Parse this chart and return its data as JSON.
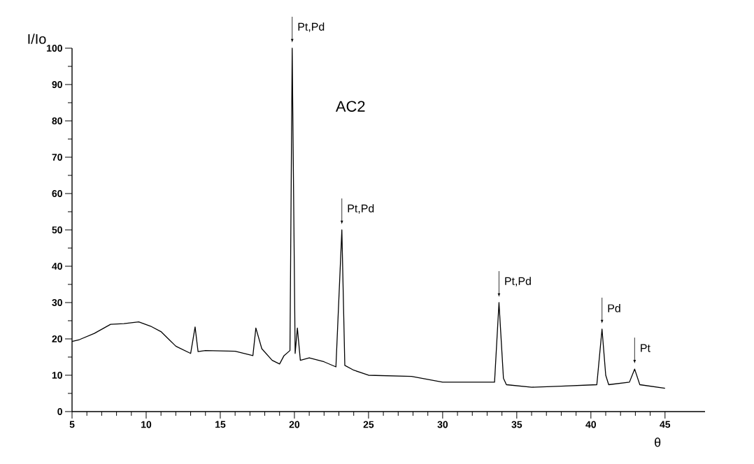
{
  "chart_data": {
    "type": "line",
    "title": "AC2",
    "xlabel": "θ",
    "ylabel": "I/Io",
    "color": "#000000",
    "marker": "none",
    "line_style": "solid",
    "x": [
      5,
      5.5,
      6.5,
      7.6,
      8.5,
      9.5,
      10.3,
      11,
      11.5,
      12,
      13,
      13.3,
      13.5,
      14,
      16,
      17.2,
      17.4,
      17.8,
      18.5,
      19,
      19.3,
      19.7,
      19.85,
      20.05,
      20.2,
      20.4,
      21,
      22,
      22.8,
      23.2,
      23.4,
      24,
      25,
      27.9,
      30,
      33.5,
      33.8,
      34.1,
      34.3,
      36,
      38,
      40.4,
      40.75,
      41,
      41.2,
      42.6,
      42.95,
      43.3,
      45
    ],
    "values": [
      19.3,
      19.8,
      21.5,
      24,
      24.2,
      24.7,
      23.5,
      22,
      20,
      18,
      16,
      23.3,
      16.5,
      16.8,
      16.6,
      15.4,
      23,
      17.3,
      14.1,
      13.1,
      15.4,
      16.8,
      100,
      16,
      23,
      14.1,
      14.8,
      13.7,
      12.3,
      50,
      12.7,
      11.4,
      10,
      9.7,
      8.1,
      8.1,
      30,
      9.2,
      7.4,
      6.7,
      7,
      7.4,
      22.7,
      10,
      7.4,
      8.1,
      11.7,
      7.4,
      6.4
    ],
    "xlim": [
      5,
      47.7
    ],
    "ylim": [
      0,
      100
    ],
    "xticks": [
      5,
      10,
      15,
      20,
      25,
      30,
      35,
      40,
      45
    ],
    "yticks": [
      0,
      10,
      20,
      30,
      40,
      50,
      60,
      70,
      80,
      90,
      100
    ],
    "annotations": [
      {
        "text": "Pt,Pd",
        "x": 19.85,
        "y": 100
      },
      {
        "text": "Pt,Pd",
        "x": 23.2,
        "y": 50
      },
      {
        "text": "Pt,Pd",
        "x": 33.8,
        "y": 30
      },
      {
        "text": "Pd",
        "x": 40.75,
        "y": 22.7
      },
      {
        "text": "Pt",
        "x": 42.95,
        "y": 11.7
      }
    ]
  }
}
